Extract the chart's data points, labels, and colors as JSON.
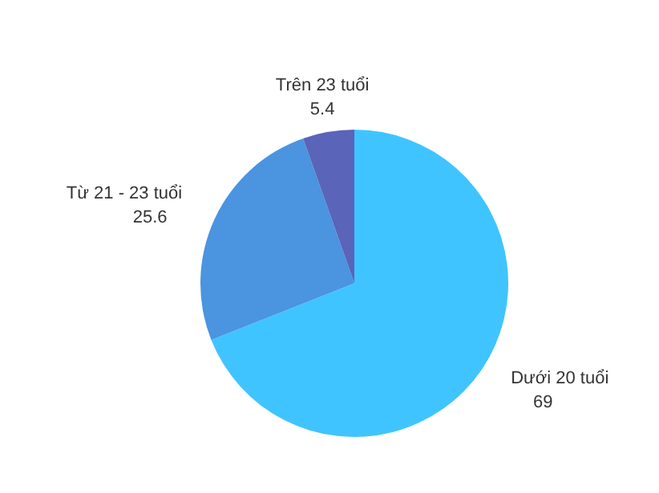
{
  "chart_data": {
    "type": "pie",
    "categories": [
      "Dưới 20 tuổi",
      "Từ 21 - 23 tuổi",
      "Trên 23 tuổi"
    ],
    "values": [
      69,
      25.6,
      5.4
    ],
    "colors": [
      "#40c4ff",
      "#4a94e0",
      "#5a64b8"
    ],
    "data_labels": true,
    "legend": false
  }
}
